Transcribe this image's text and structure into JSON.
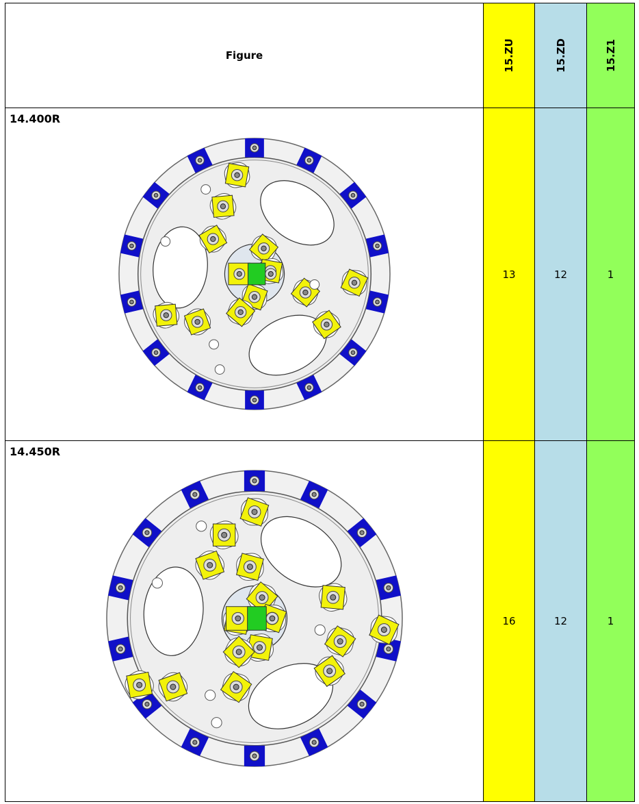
{
  "table": {
    "header": [
      "Figure",
      "15.ZU",
      "15.ZD",
      "15.Z1"
    ],
    "rows": [
      {
        "label": "14.400R",
        "values": [
          13,
          12,
          1
        ]
      },
      {
        "label": "14.450R",
        "values": [
          16,
          12,
          1
        ]
      }
    ]
  }
}
